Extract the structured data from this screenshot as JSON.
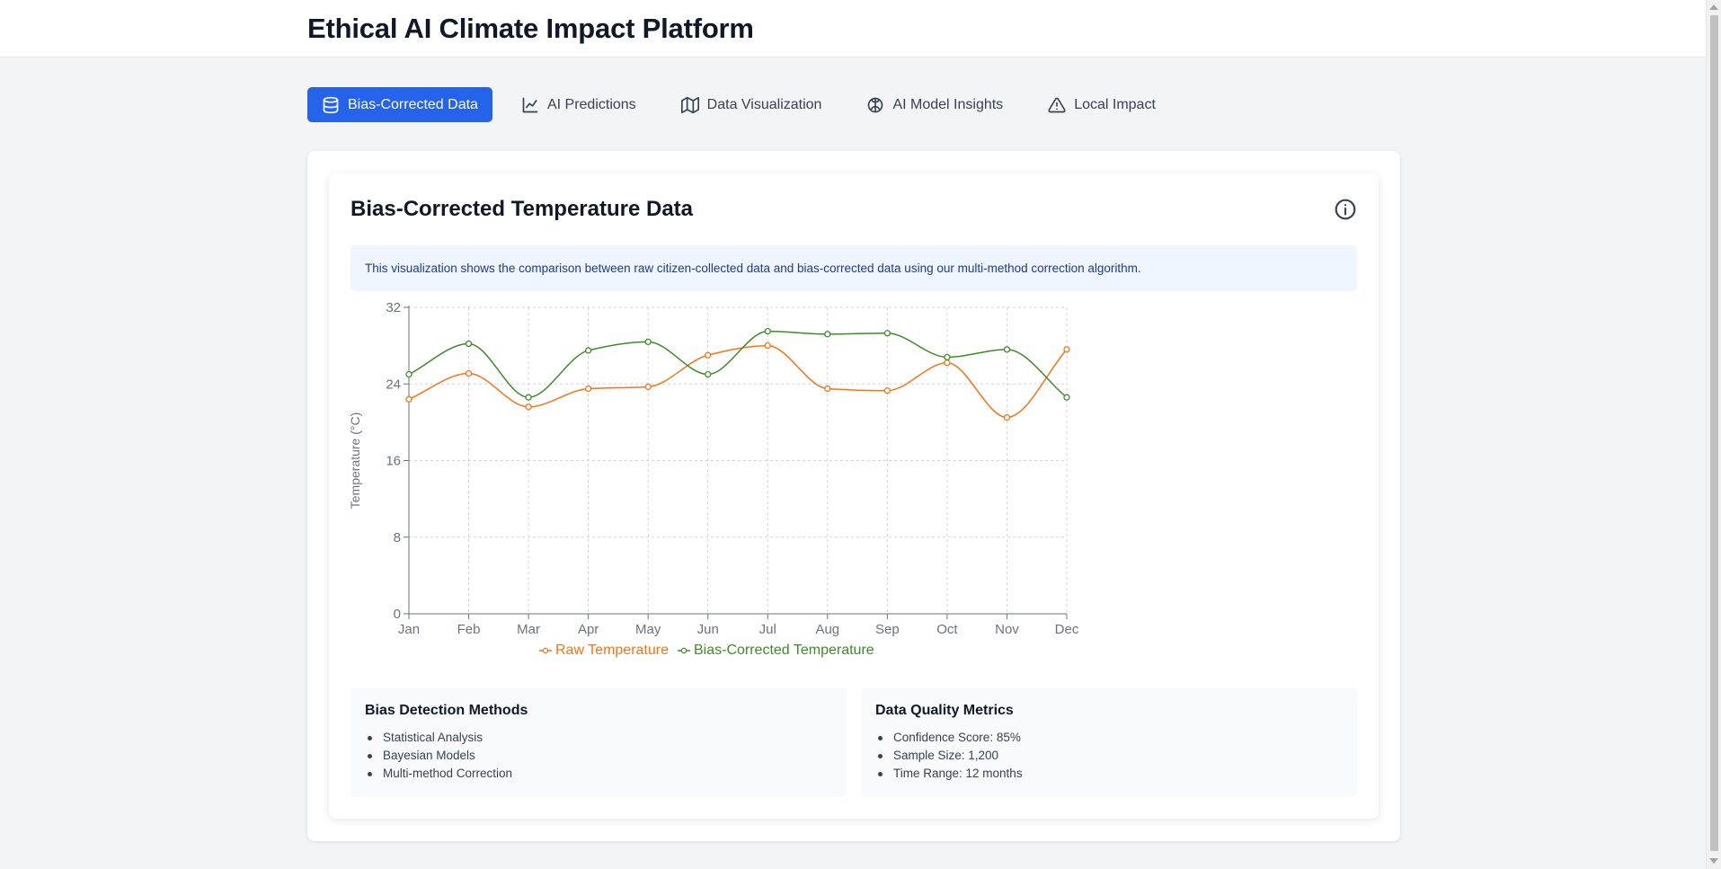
{
  "app": {
    "title": "Ethical AI Climate Impact Platform"
  },
  "tabs": [
    {
      "label": "Bias-Corrected Data",
      "icon": "database-icon",
      "active": true
    },
    {
      "label": "AI Predictions",
      "icon": "line-chart-icon",
      "active": false
    },
    {
      "label": "Data Visualization",
      "icon": "map-icon",
      "active": false
    },
    {
      "label": "AI Model Insights",
      "icon": "brain-icon",
      "active": false
    },
    {
      "label": "Local Impact",
      "icon": "alert-triangle-icon",
      "active": false
    }
  ],
  "section": {
    "title": "Bias-Corrected Temperature Data",
    "info_icon": "info-circle-icon",
    "note": "This visualization shows the comparison between raw citizen-collected data and bias-corrected data using our multi-method correction algorithm."
  },
  "chart_data": {
    "type": "line",
    "categories": [
      "Jan",
      "Feb",
      "Mar",
      "Apr",
      "May",
      "Jun",
      "Jul",
      "Aug",
      "Sep",
      "Oct",
      "Nov",
      "Dec"
    ],
    "series": [
      {
        "name": "Raw Temperature",
        "color": "#f97316",
        "values": [
          22.4,
          25.1,
          21.6,
          23.5,
          23.7,
          27.0,
          28.0,
          23.5,
          23.3,
          26.2,
          20.5,
          27.6
        ]
      },
      {
        "name": "Bias-Corrected Temperature",
        "color": "#3f8a2a",
        "values": [
          25.0,
          28.2,
          22.6,
          27.5,
          28.4,
          25.0,
          29.5,
          29.2,
          29.3,
          26.8,
          27.6,
          22.6
        ]
      }
    ],
    "ylabel": "Temperature (°C)",
    "xlabel": "",
    "ylim": [
      0,
      32
    ],
    "yticks": [
      0,
      8,
      16,
      24,
      32
    ],
    "grid": true,
    "legend": "bottom"
  },
  "panels": {
    "bias_methods": {
      "title": "Bias Detection Methods",
      "items": [
        "Statistical Analysis",
        "Bayesian Models",
        "Multi-method Correction"
      ]
    },
    "quality_metrics": {
      "title": "Data Quality Metrics",
      "items": [
        "Confidence Score: 85%",
        "Sample Size: 1,200",
        "Time Range: 12 months"
      ]
    }
  }
}
